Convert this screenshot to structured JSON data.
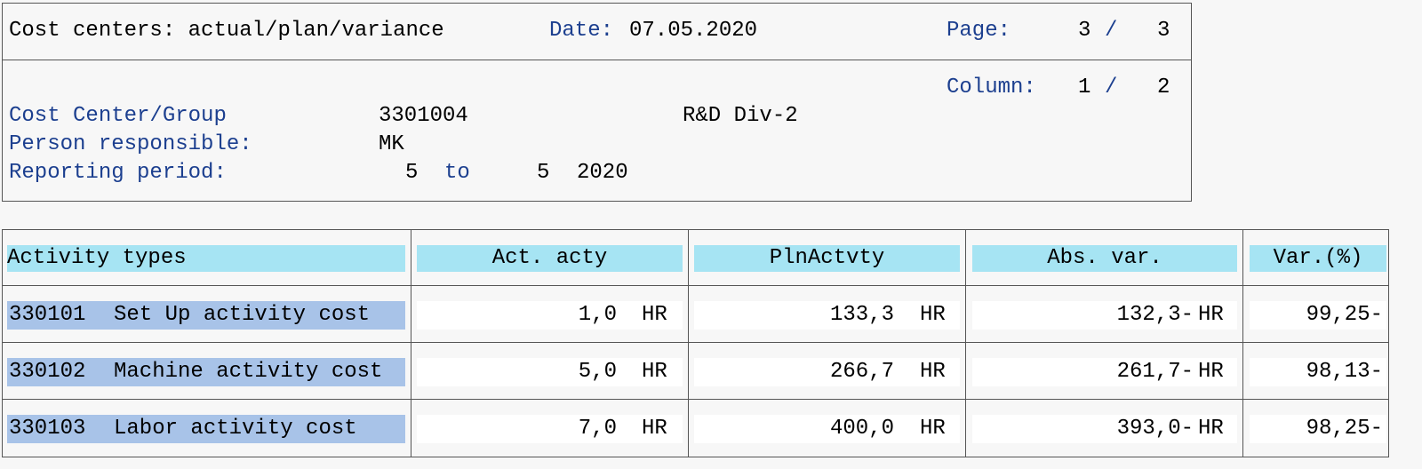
{
  "header": {
    "title": "Cost centers: actual/plan/variance",
    "date_label": "Date:",
    "date": "07.05.2020",
    "page_label": "Page:",
    "page": "3",
    "page_sep": "/",
    "page_total": "3",
    "column_label": "Column:",
    "column": "1",
    "column_sep": "/",
    "column_total": "2",
    "cost_center_label": "Cost Center/Group",
    "cost_center": "3301004",
    "cost_center_name": "R&D Div-2",
    "person_label": "Person responsible:",
    "person": "MK",
    "period_label": "Reporting period:",
    "period_from": "5",
    "period_to_label": "to",
    "period_to": "5",
    "period_year": "2020"
  },
  "table": {
    "columns": [
      "Activity types",
      "Act. acty",
      "PlnActvty",
      "Abs. var.",
      "Var.(%)"
    ],
    "rows": [
      [
        "330101",
        "Set Up activity cost",
        "1,0",
        "HR",
        "133,3",
        "HR",
        "132,3-",
        "HR",
        "99,25-"
      ],
      [
        "330102",
        "Machine activity cost",
        "5,0",
        "HR",
        "266,7",
        "HR",
        "261,7-",
        "HR",
        "98,13-"
      ],
      [
        "330103",
        "Labor activity cost",
        "7,0",
        "HR",
        "400,0",
        "HR",
        "393,0-",
        "HR",
        "98,25-"
      ]
    ]
  }
}
